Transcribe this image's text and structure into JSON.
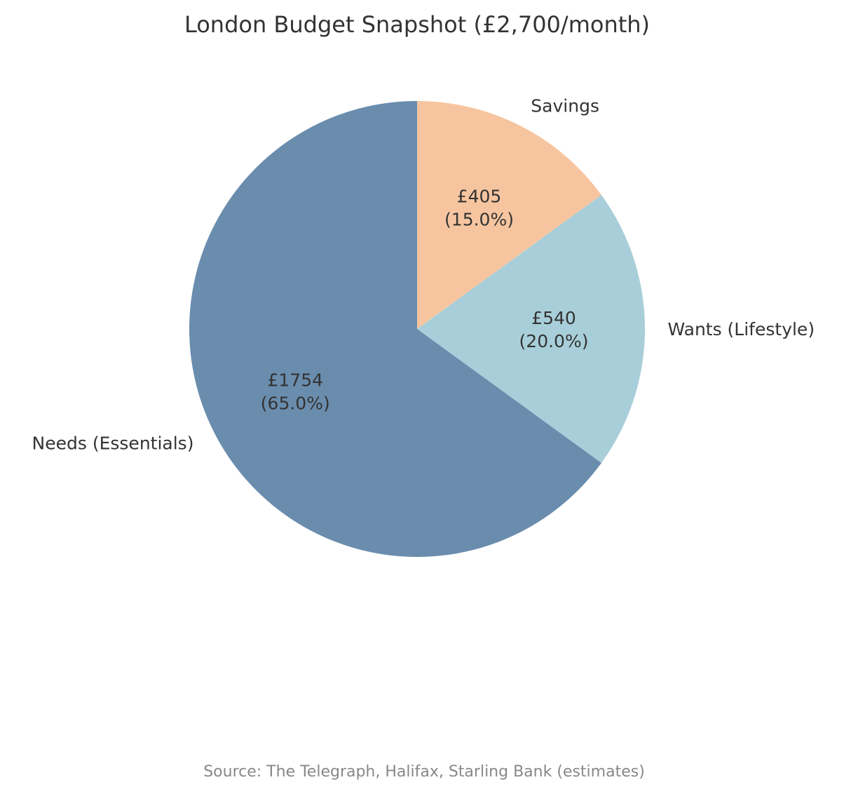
{
  "chart_data": {
    "type": "pie",
    "title": "London Budget Snapshot (£2,700/month)",
    "categories": [
      "Savings",
      "Wants (Lifestyle)",
      "Needs (Essentials)"
    ],
    "values": [
      405,
      540,
      1754
    ],
    "value_labels": [
      "£405",
      "£540",
      "£1754"
    ],
    "percent_labels": [
      "(15.0%)",
      "(20.0%)",
      "(65.0%)"
    ],
    "percentages": [
      15.0,
      20.0,
      65.0
    ],
    "colors": [
      "#f6c5a0",
      "#a8cfd9",
      "#6a8dae"
    ],
    "start_angle": "12 o'clock",
    "direction": "clockwise",
    "source": "Source: The Telegraph, Halifax, Starling Bank (estimates)"
  }
}
